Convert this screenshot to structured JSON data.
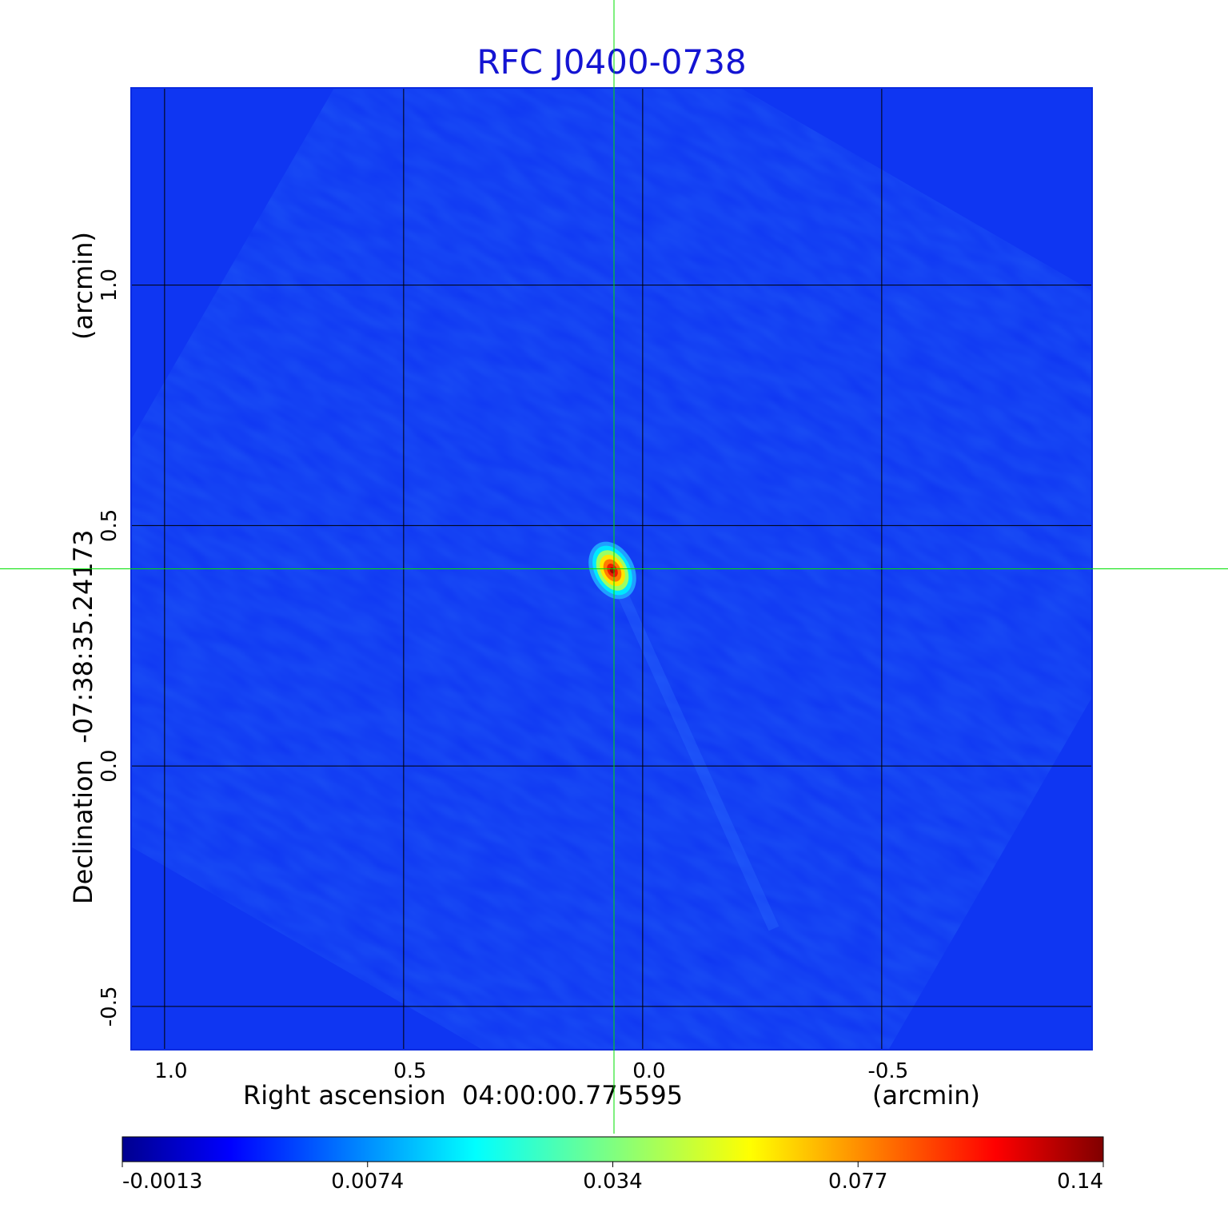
{
  "chart_data": {
    "type": "heatmap",
    "title": "RFC J0400-0738",
    "xlabel": "Right ascension  04:00:00.775595",
    "xlabel_unit": "(arcmin)",
    "ylabel": "Declination  -07:38:35.24173",
    "ylabel_unit": "(arcmin)",
    "x_ticks": [
      "1.0",
      "0.5",
      "0.0",
      "-0.5"
    ],
    "x_tick_values": [
      1.0,
      0.5,
      0.0,
      -0.5
    ],
    "y_ticks": [
      "1.0",
      "0.5",
      "0.0",
      "-0.5"
    ],
    "y_tick_values": [
      1.0,
      0.5,
      0.0,
      -0.5
    ],
    "xlim": [
      1.07,
      -0.94
    ],
    "ylim": [
      -0.59,
      1.41
    ],
    "grid": true,
    "crosshair": {
      "x": 0.06,
      "y": 0.41,
      "color": "#00e000"
    },
    "colormap": "jet",
    "colorbar": {
      "ticks": [
        "-0.0013",
        "0.0074",
        "0.034",
        "0.077",
        "0.14"
      ],
      "tick_values": [
        -0.0013,
        0.0074,
        0.034,
        0.077,
        0.14
      ],
      "range": [
        -0.0013,
        0.14
      ],
      "scale": "nonlinear"
    },
    "source_peak": {
      "x": 0.06,
      "y": 0.41,
      "value": 0.14
    }
  }
}
